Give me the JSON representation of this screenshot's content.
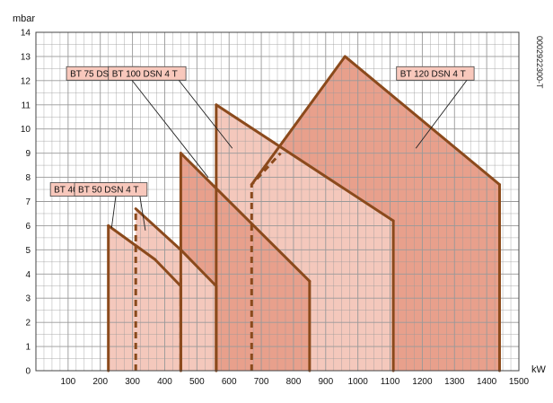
{
  "chart_data": {
    "type": "area",
    "title": "",
    "xlabel": "kW",
    "ylabel": "mbar",
    "xlim": [
      0,
      1500
    ],
    "ylim": [
      0,
      14
    ],
    "x_ticks": [
      100,
      200,
      300,
      400,
      500,
      600,
      700,
      800,
      900,
      1000,
      1100,
      1200,
      1300,
      1400,
      1500
    ],
    "y_ticks": [
      0,
      1,
      2,
      3,
      4,
      5,
      6,
      7,
      8,
      9,
      10,
      11,
      12,
      13,
      14
    ],
    "grid": true,
    "side_code": "0002922300-T",
    "colors": {
      "dark_fill": "#e8a08c",
      "light_fill": "#f4c8bc",
      "outline": "#8b4a1c",
      "grid": "#999999",
      "label_bg": "#f8c8bc"
    },
    "series": [
      {
        "name": "BT 40 DSN 4 T",
        "fill": "light",
        "points": [
          [
            225,
            0
          ],
          [
            225,
            6
          ],
          [
            370,
            4.6
          ],
          [
            450,
            3.5
          ],
          [
            450,
            0
          ]
        ],
        "dashed": []
      },
      {
        "name": "BT 50 DSN 4 T",
        "fill": "light",
        "points": [
          [
            310,
            0
          ],
          [
            310,
            6.7
          ],
          [
            450,
            5
          ],
          [
            560,
            3.5
          ],
          [
            560,
            0
          ]
        ],
        "dashed": [
          [
            310,
            0
          ],
          [
            310,
            6.7
          ]
        ]
      },
      {
        "name": "BT 75 DSN 4 T",
        "fill": "dark",
        "points": [
          [
            450,
            0
          ],
          [
            450,
            9
          ],
          [
            850,
            3.7
          ],
          [
            850,
            0
          ]
        ],
        "dashed": [
          [
            450,
            0
          ],
          [
            450,
            4
          ]
        ]
      },
      {
        "name": "BT 100 DSN 4 T",
        "fill": "light",
        "points": [
          [
            560,
            0
          ],
          [
            560,
            11
          ],
          [
            1110,
            6.2
          ],
          [
            1110,
            0
          ]
        ],
        "dashed": []
      },
      {
        "name": "BT 120 DSN 4 T",
        "fill": "dark",
        "points": [
          [
            670,
            0
          ],
          [
            670,
            7.7
          ],
          [
            960,
            13
          ],
          [
            1440,
            7.7
          ],
          [
            1440,
            0
          ]
        ],
        "dashed": [
          [
            670,
            0
          ],
          [
            670,
            7.7
          ],
          [
            760,
            9
          ]
        ]
      }
    ],
    "labels": [
      {
        "text": "BT 40 DSN 4 T",
        "x": 45,
        "y": 7.5,
        "anchor": [
          235,
          5.9
        ]
      },
      {
        "text": "BT 50 DSN 4 T",
        "x": 120,
        "y": 7.5,
        "anchor": [
          340,
          5.8
        ]
      },
      {
        "text": "BT 75 DSN 4 T",
        "x": 95,
        "y": 12.3,
        "anchor": [
          535,
          8
        ]
      },
      {
        "text": "BT 100 DSN 4 T",
        "x": 225,
        "y": 12.3,
        "anchor": [
          610,
          9.2
        ]
      },
      {
        "text": "BT 120 DSN 4 T",
        "x": 1120,
        "y": 12.3,
        "anchor": [
          1180,
          9.2
        ]
      }
    ]
  }
}
